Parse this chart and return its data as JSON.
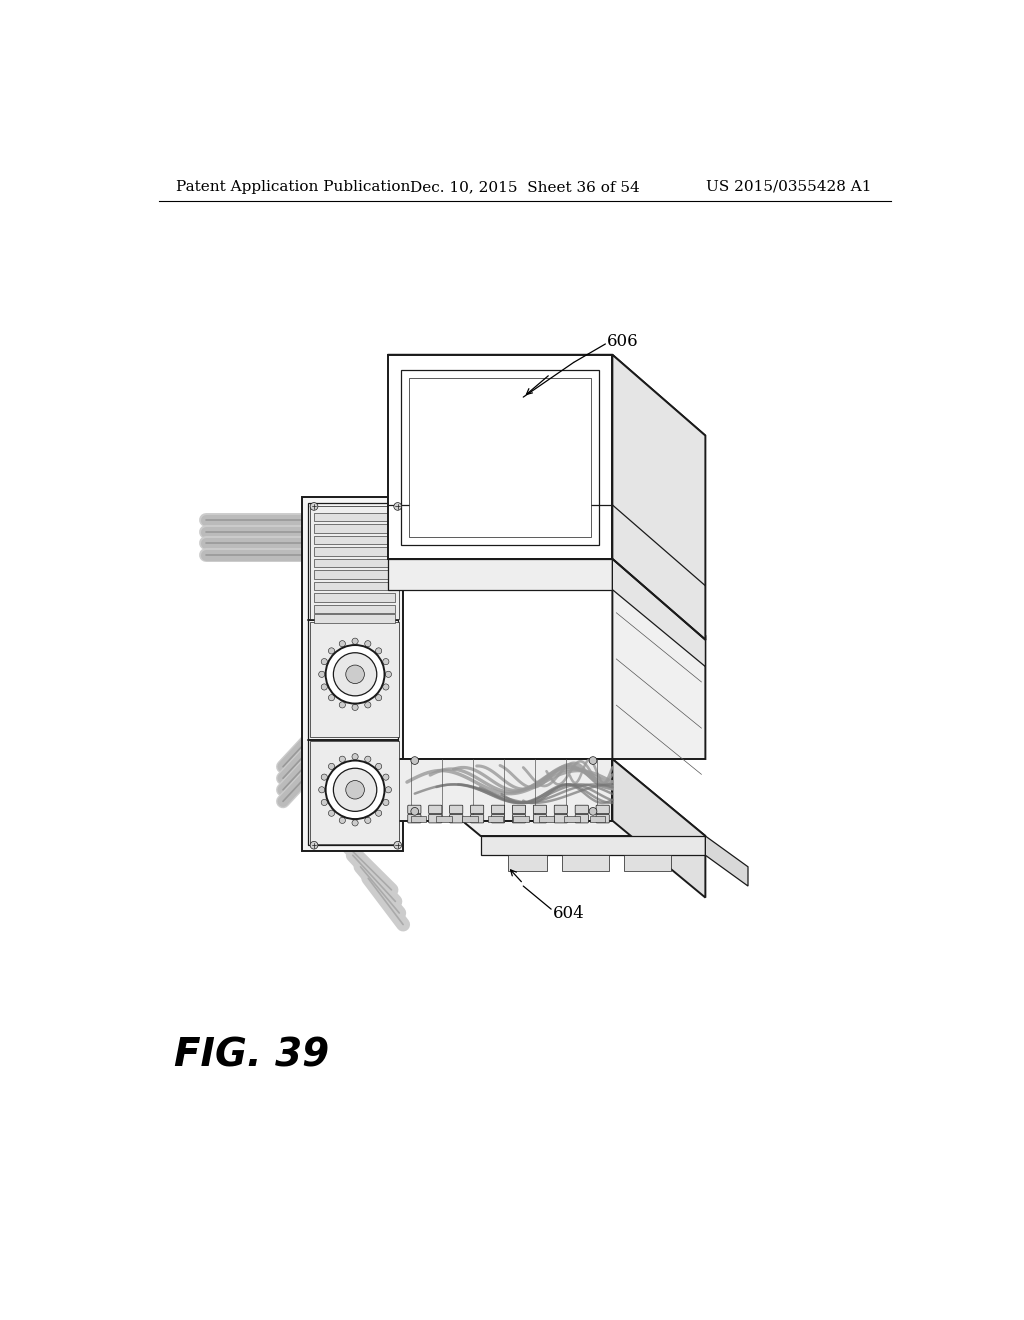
{
  "background_color": "#ffffff",
  "header_left": "Patent Application Publication",
  "header_center": "Dec. 10, 2015  Sheet 36 of 54",
  "header_right": "US 2015/0355428 A1",
  "fig_label": "FIG. 39",
  "ref_606": "606",
  "ref_604": "604",
  "header_fontsize": 11,
  "ref_fontsize": 12
}
